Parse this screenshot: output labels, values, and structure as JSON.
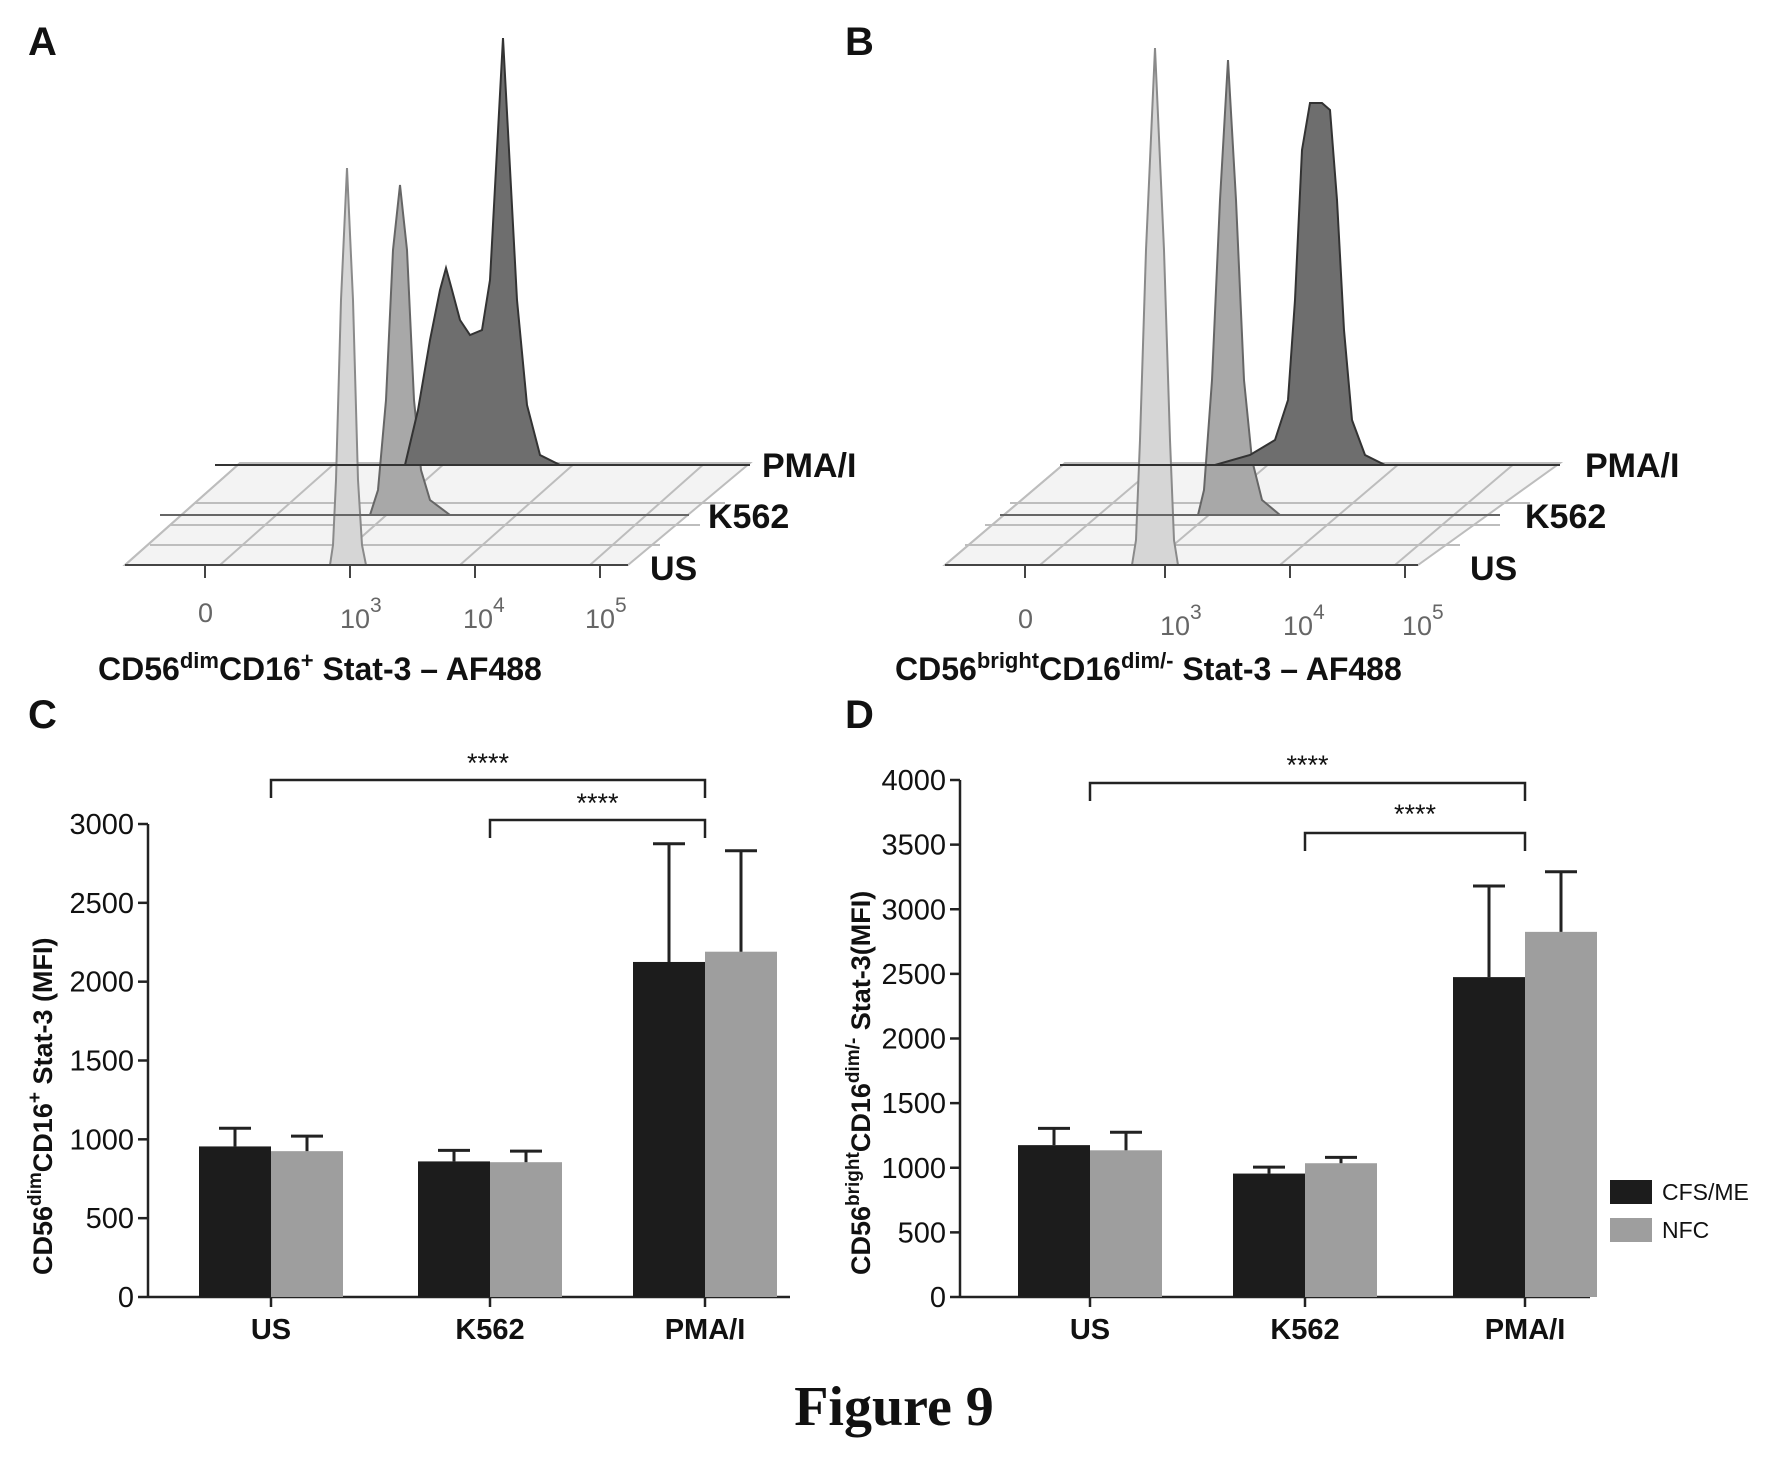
{
  "figure_caption": "Figure 9",
  "legend": [
    {
      "name": "CFS/ME",
      "color": "#1c1c1c"
    },
    {
      "name": "NFC",
      "color": "#9e9e9e"
    }
  ],
  "panels": {
    "A": {
      "label": "A",
      "traces": [
        "PMA/I",
        "K562",
        "US"
      ],
      "x_ticks": [
        "0",
        "10^3",
        "10^4",
        "10^5"
      ],
      "xlabel": {
        "p1": "CD56",
        "s1": "dim",
        "p2": "CD16",
        "s2": "+",
        "p3": " Stat-3 – AF488"
      }
    },
    "B": {
      "label": "B",
      "traces": [
        "PMA/I",
        "K562",
        "US"
      ],
      "x_ticks": [
        "0",
        "10^3",
        "10^4",
        "10^5"
      ],
      "xlabel": {
        "p1": "CD56",
        "s1": "bright",
        "p2": "CD16",
        "s2": "dim/-",
        "p3": " Stat-3 – AF488"
      }
    },
    "C": {
      "label": "C",
      "ylabel": {
        "p1": "CD56",
        "s1": "dim",
        "p2": "CD16",
        "s2": "+",
        "p3": " Stat-3 (MFI)"
      },
      "significance": [
        "****",
        "****"
      ]
    },
    "D": {
      "label": "D",
      "ylabel": {
        "p1": "CD56",
        "s1": "bright",
        "p2": "CD16",
        "s2": "dim/-",
        "p3": " Stat-3(MFI)"
      },
      "significance": [
        "****",
        "****"
      ]
    }
  },
  "colors": {
    "cfs_me": "#1c1c1c",
    "nfc": "#9e9e9e",
    "hist_us": "#d6d6d6",
    "hist_k562": "#a8a8a8",
    "hist_pma": "#6e6e6e"
  },
  "chart_data": [
    {
      "panel": "C",
      "type": "bar",
      "categories": [
        "US",
        "K562",
        "PMA/I"
      ],
      "series": [
        {
          "name": "CFS/ME",
          "values": [
            955,
            860,
            2125
          ],
          "error": [
            115,
            70,
            750
          ]
        },
        {
          "name": "NFC",
          "values": [
            925,
            855,
            2190
          ],
          "error": [
            95,
            70,
            640
          ]
        }
      ],
      "ylim": [
        0,
        3000
      ],
      "yticks": [
        0,
        500,
        1000,
        1500,
        2000,
        2500,
        3000
      ],
      "significance": [
        {
          "from": "US",
          "to": "PMA/I",
          "label": "****"
        },
        {
          "from": "K562",
          "to": "PMA/I",
          "label": "****"
        }
      ]
    },
    {
      "panel": "D",
      "type": "bar",
      "categories": [
        "US",
        "K562",
        "PMA/I"
      ],
      "series": [
        {
          "name": "CFS/ME",
          "values": [
            1175,
            955,
            2475
          ],
          "error": [
            130,
            50,
            705
          ]
        },
        {
          "name": "NFC",
          "values": [
            1135,
            1035,
            2825
          ],
          "error": [
            140,
            45,
            465
          ]
        }
      ],
      "ylim": [
        0,
        4000
      ],
      "yticks": [
        0,
        500,
        1000,
        1500,
        2000,
        2500,
        3000,
        3500,
        4000
      ],
      "significance": [
        {
          "from": "US",
          "to": "PMA/I",
          "label": "****"
        },
        {
          "from": "K562",
          "to": "PMA/I",
          "label": "****"
        }
      ],
      "legend_position": "bottom-right"
    }
  ]
}
